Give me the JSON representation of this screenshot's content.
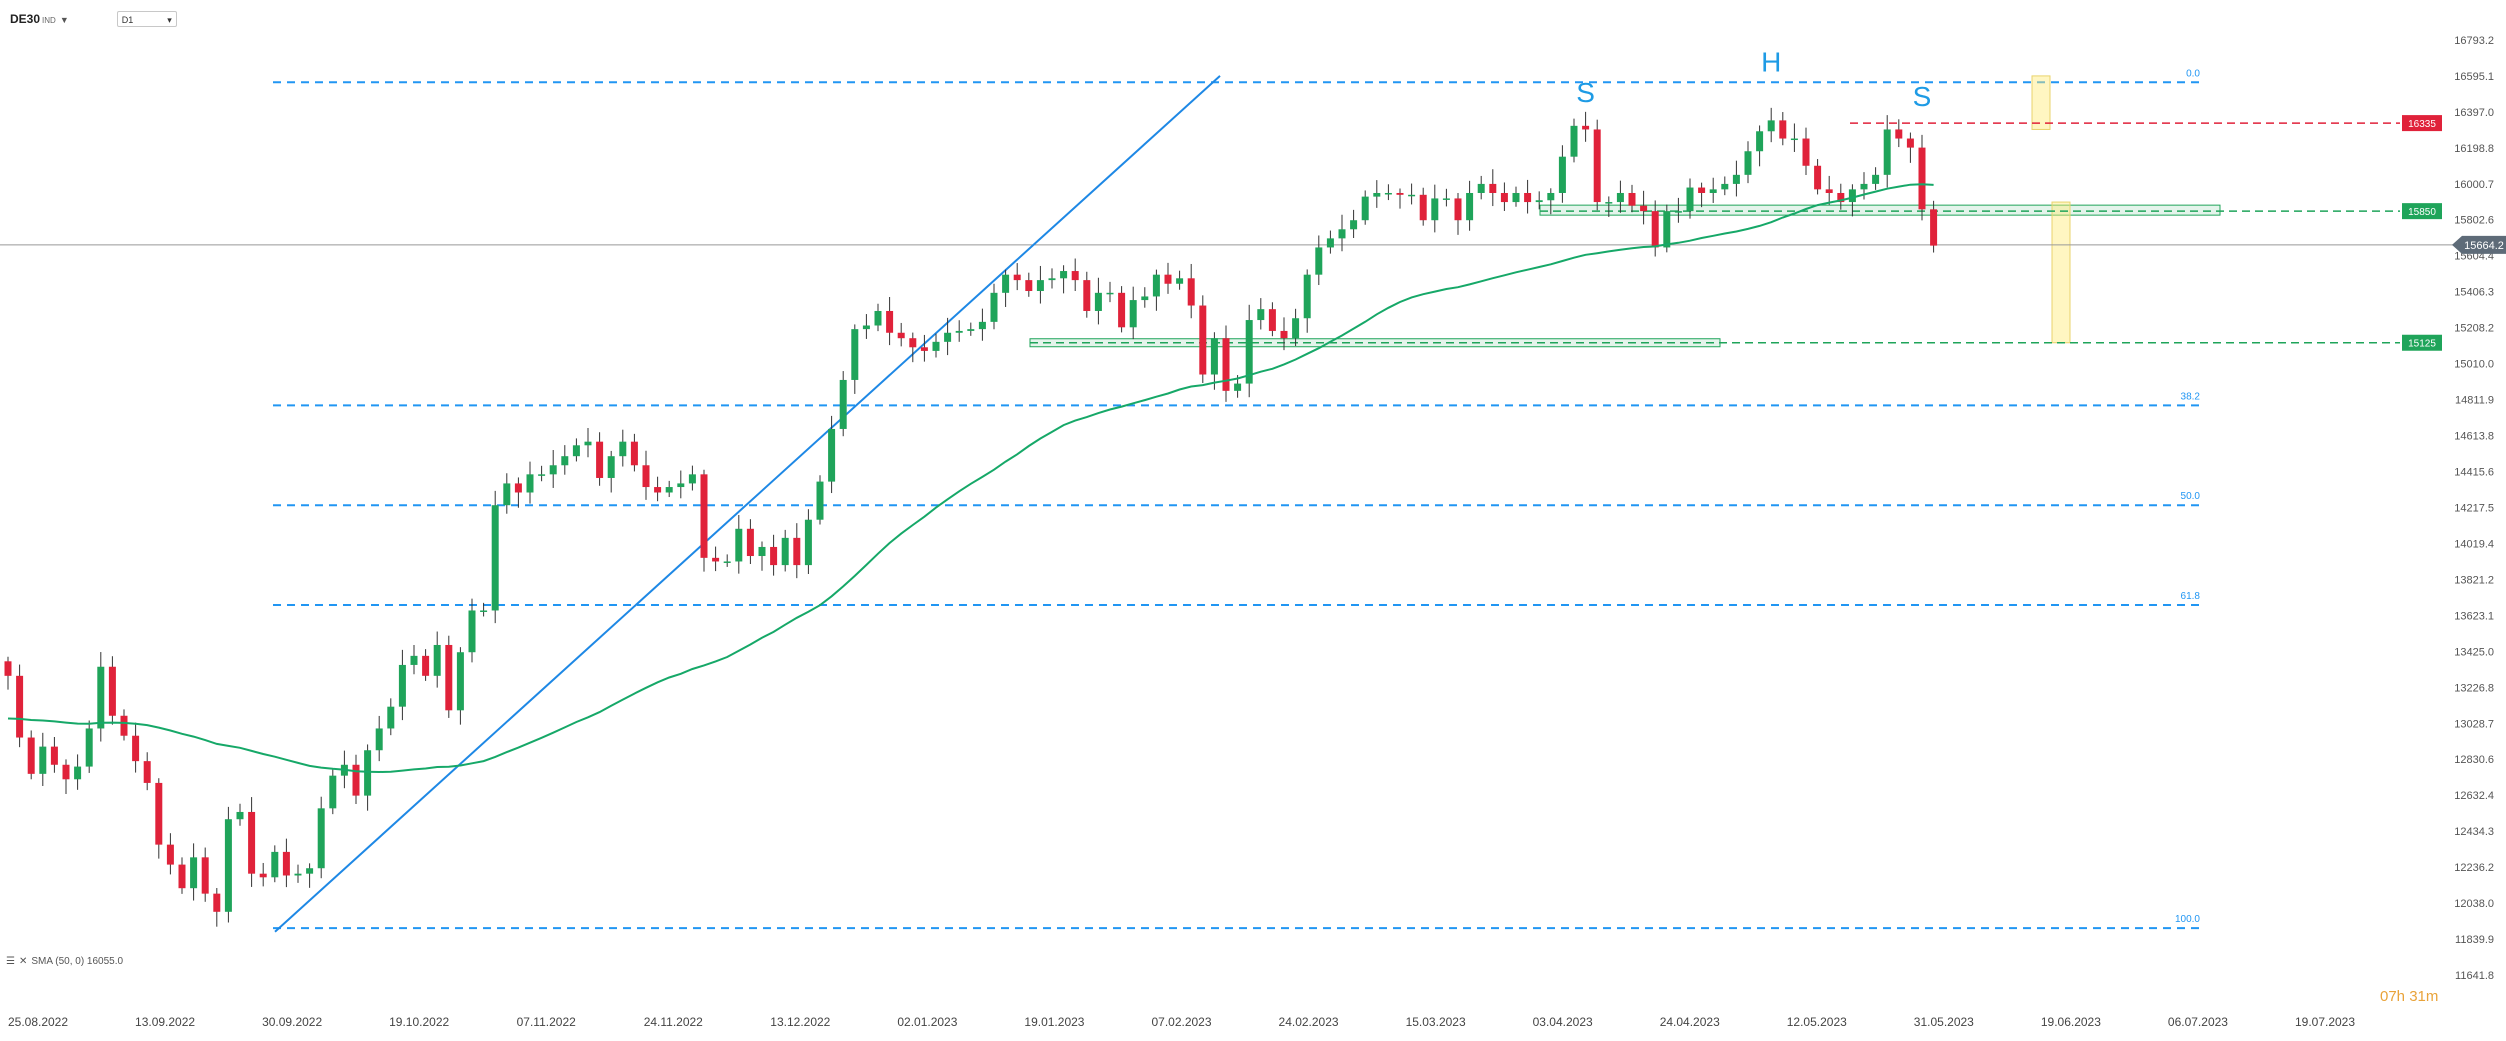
{
  "toolbar": {
    "symbol": "DE30",
    "symbol_suffix": "IND",
    "timeframe": "D1"
  },
  "legend": {
    "text": "SMA (50, 0)  16055.0"
  },
  "countdown": {
    "text": "07h 31m"
  },
  "colors": {
    "bull": "#1fa45a",
    "bear": "#e0223a",
    "sma": "#16a868",
    "trend": "#1e88e5",
    "fib": "#2196f3",
    "support": "#1fa45a",
    "resistance": "#e0223a"
  },
  "chart_data": {
    "type": "candlestick",
    "instrument": "DE30",
    "timeframe": "D1",
    "ylim": [
      11641.8,
      16892.0
    ],
    "y_ticks": [
      16793.2,
      16595.1,
      16397.0,
      16198.8,
      16000.7,
      15802.6,
      15604.4,
      15406.3,
      15208.2,
      15010.0,
      14811.9,
      14613.8,
      14415.6,
      14217.5,
      14019.4,
      13821.2,
      13623.1,
      13425.0,
      13226.8,
      13028.7,
      12830.6,
      12632.4,
      12434.3,
      12236.2,
      12038.0,
      11839.9,
      11641.8
    ],
    "x_ticks": [
      "25.08.2022",
      "13.09.2022",
      "30.09.2022",
      "19.10.2022",
      "07.11.2022",
      "24.11.2022",
      "13.12.2022",
      "02.01.2023",
      "19.01.2023",
      "07.02.2023",
      "24.02.2023",
      "15.03.2023",
      "03.04.2023",
      "24.04.2023",
      "12.05.2023",
      "31.05.2023",
      "19.06.2023",
      "06.07.2023",
      "19.07.2023"
    ],
    "closes": [
      13290,
      12950,
      12750,
      12900,
      12800,
      12720,
      12790,
      13000,
      13340,
      13070,
      12960,
      12820,
      12700,
      12360,
      12250,
      12120,
      12290,
      12090,
      11990,
      12500,
      12540,
      12200,
      12180,
      12320,
      12190,
      12200,
      12230,
      12560,
      12740,
      12800,
      12630,
      12880,
      13000,
      13120,
      13350,
      13400,
      13290,
      13460,
      13100,
      13420,
      13650,
      13650,
      14230,
      14350,
      14300,
      14400,
      14400,
      14450,
      14500,
      14560,
      14580,
      14380,
      14500,
      14580,
      14450,
      14330,
      14300,
      14330,
      14350,
      14400,
      13940,
      13920,
      13920,
      14100,
      13950,
      14000,
      13900,
      14050,
      13900,
      14150,
      14360,
      14650,
      14920,
      15200,
      15220,
      15300,
      15180,
      15150,
      15100,
      15080,
      15130,
      15180,
      15190,
      15200,
      15240,
      15400,
      15500,
      15470,
      15410,
      15470,
      15480,
      15520,
      15470,
      15300,
      15400,
      15400,
      15210,
      15360,
      15380,
      15500,
      15450,
      15480,
      15330,
      14950,
      15150,
      14860,
      14900,
      15250,
      15310,
      15190,
      15150,
      15260,
      15500,
      15650,
      15700,
      15750,
      15800,
      15930,
      15950,
      15950,
      15940,
      15940,
      15800,
      15920,
      15920,
      15800,
      15950,
      16000,
      15950,
      15900,
      15950,
      15900,
      15910,
      15950,
      16150,
      16320,
      16300,
      15900,
      15900,
      15950,
      15880,
      15850,
      15650,
      15850,
      15850,
      15980,
      15950,
      15970,
      16000,
      16050,
      16180,
      16290,
      16350,
      16250,
      16250,
      16100,
      15970,
      15950,
      15900,
      15970,
      16000,
      16050,
      16300,
      16250,
      16200,
      15860,
      15660
    ],
    "sma": {
      "name": "SMA (50, 0)",
      "last": 16055.0,
      "period": 50
    },
    "current_price": 15664.2,
    "fibonacci": [
      {
        "label": "0.0",
        "price": 16560
      },
      {
        "label": "38.2",
        "price": 14780
      },
      {
        "label": "50.0",
        "price": 14230
      },
      {
        "label": "61.8",
        "price": 13680
      },
      {
        "label": "100.0",
        "price": 11900
      }
    ],
    "horizontal_levels": [
      {
        "label": "16335",
        "price": 16335,
        "kind": "resistance"
      },
      {
        "label": "15850",
        "price": 15850,
        "kind": "support"
      },
      {
        "label": "15125",
        "price": 15125,
        "kind": "support"
      }
    ],
    "pattern_labels": [
      {
        "text": "S",
        "bar": 136,
        "price": 16450
      },
      {
        "text": "H",
        "bar": 152,
        "price": 16620
      },
      {
        "text": "S",
        "bar": 165,
        "price": 16430
      }
    ]
  }
}
